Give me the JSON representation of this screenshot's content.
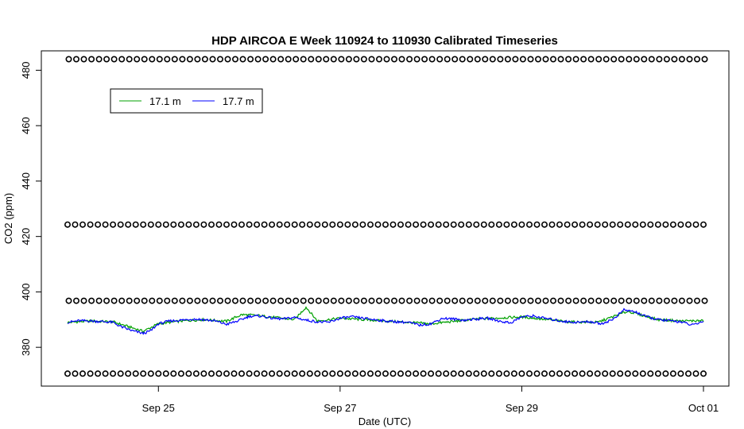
{
  "chart_data": {
    "type": "line",
    "title": "HDP AIRCOA E  Week 110924 to 110930  Calibrated Timeseries",
    "xlabel": "Date (UTC)",
    "ylabel": "CO2 (ppm)",
    "xlim": [
      "2011-09-24T00:00",
      "2011-10-01T00:00"
    ],
    "ylim": [
      366,
      487
    ],
    "x_ticks": [
      {
        "x": "2011-09-25T00:00",
        "label": "Sep 25"
      },
      {
        "x": "2011-09-27T00:00",
        "label": "Sep 27"
      },
      {
        "x": "2011-09-29T00:00",
        "label": "Sep 29"
      },
      {
        "x": "2011-10-01T00:00",
        "label": "Oct 01"
      }
    ],
    "y_ticks": [
      380,
      400,
      420,
      440,
      460,
      480
    ],
    "grid": false,
    "legend": {
      "position": "top-left",
      "horizontal": true
    },
    "series": [
      {
        "name": "17.1 m",
        "color": "#00a000",
        "points": [
          [
            "2011-09-24T00:00",
            389.0
          ],
          [
            "2011-09-24T06:00",
            389.5
          ],
          [
            "2011-09-24T12:00",
            389.2
          ],
          [
            "2011-09-24T16:00",
            387.5
          ],
          [
            "2011-09-24T20:00",
            385.8
          ],
          [
            "2011-09-25T00:00",
            388.5
          ],
          [
            "2011-09-25T06:00",
            389.5
          ],
          [
            "2011-09-25T12:00",
            390.0
          ],
          [
            "2011-09-25T18:00",
            389.4
          ],
          [
            "2011-09-25T22:00",
            391.8
          ],
          [
            "2011-09-26T02:00",
            391.5
          ],
          [
            "2011-09-26T12:00",
            390.0
          ],
          [
            "2011-09-26T15:00",
            394.5
          ],
          [
            "2011-09-26T18:00",
            389.5
          ],
          [
            "2011-09-27T00:00",
            390.5
          ],
          [
            "2011-09-27T12:00",
            389.5
          ],
          [
            "2011-09-28T00:00",
            388.5
          ],
          [
            "2011-09-28T12:00",
            390.2
          ],
          [
            "2011-09-29T00:00",
            391.0
          ],
          [
            "2011-09-29T12:00",
            389.2
          ],
          [
            "2011-09-29T20:00",
            389.0
          ],
          [
            "2011-09-30T04:00",
            393.0
          ],
          [
            "2011-09-30T12:00",
            390.0
          ],
          [
            "2011-09-30T18:00",
            389.5
          ],
          [
            "2011-10-01T00:00",
            389.6
          ]
        ]
      },
      {
        "name": "17.7 m",
        "color": "#0000ff",
        "points": [
          [
            "2011-09-24T00:00",
            389.0
          ],
          [
            "2011-09-24T03:00",
            389.6
          ],
          [
            "2011-09-24T06:00",
            389.5
          ],
          [
            "2011-09-24T09:00",
            389.3
          ],
          [
            "2011-09-24T12:00",
            389.0
          ],
          [
            "2011-09-24T14:00",
            387.5
          ],
          [
            "2011-09-24T17:00",
            386.0
          ],
          [
            "2011-09-24T20:00",
            385.0
          ],
          [
            "2011-09-24T22:00",
            386.0
          ],
          [
            "2011-09-25T00:00",
            388.5
          ],
          [
            "2011-09-25T03:00",
            389.5
          ],
          [
            "2011-09-25T06:00",
            389.8
          ],
          [
            "2011-09-25T09:00",
            390.2
          ],
          [
            "2011-09-25T12:00",
            390.0
          ],
          [
            "2011-09-25T15:00",
            389.5
          ],
          [
            "2011-09-25T18:00",
            388.3
          ],
          [
            "2011-09-25T21:00",
            389.5
          ],
          [
            "2011-09-26T00:00",
            391.2
          ],
          [
            "2011-09-26T03:00",
            391.3
          ],
          [
            "2011-09-26T06:00",
            390.5
          ],
          [
            "2011-09-26T09:00",
            390.2
          ],
          [
            "2011-09-26T12:00",
            390.8
          ],
          [
            "2011-09-26T15:00",
            389.8
          ],
          [
            "2011-09-26T18:00",
            389.2
          ],
          [
            "2011-09-26T21:00",
            389.0
          ],
          [
            "2011-09-27T00:00",
            390.5
          ],
          [
            "2011-09-27T03:00",
            391.0
          ],
          [
            "2011-09-27T06:00",
            390.5
          ],
          [
            "2011-09-27T09:00",
            390.0
          ],
          [
            "2011-09-27T12:00",
            389.5
          ],
          [
            "2011-09-27T15:00",
            389.2
          ],
          [
            "2011-09-27T18:00",
            389.0
          ],
          [
            "2011-09-27T21:00",
            388.0
          ],
          [
            "2011-09-28T00:00",
            388.5
          ],
          [
            "2011-09-28T03:00",
            390.5
          ],
          [
            "2011-09-28T06:00",
            390.2
          ],
          [
            "2011-09-28T09:00",
            389.8
          ],
          [
            "2011-09-28T12:00",
            390.2
          ],
          [
            "2011-09-28T15:00",
            390.5
          ],
          [
            "2011-09-28T18:00",
            389.5
          ],
          [
            "2011-09-28T21:00",
            388.8
          ],
          [
            "2011-09-29T00:00",
            391.0
          ],
          [
            "2011-09-29T03:00",
            391.3
          ],
          [
            "2011-09-29T06:00",
            390.5
          ],
          [
            "2011-09-29T09:00",
            389.8
          ],
          [
            "2011-09-29T12:00",
            389.2
          ],
          [
            "2011-09-29T15:00",
            389.0
          ],
          [
            "2011-09-29T18:00",
            389.3
          ],
          [
            "2011-09-29T21:00",
            388.5
          ],
          [
            "2011-09-30T00:00",
            390.0
          ],
          [
            "2011-09-30T03:00",
            393.5
          ],
          [
            "2011-09-30T06:00",
            392.8
          ],
          [
            "2011-09-30T09:00",
            391.0
          ],
          [
            "2011-09-30T12:00",
            390.0
          ],
          [
            "2011-09-30T15:00",
            389.6
          ],
          [
            "2011-09-30T18:00",
            389.2
          ],
          [
            "2011-09-30T21:00",
            388.0
          ],
          [
            "2011-10-01T00:00",
            389.3
          ]
        ]
      },
      {
        "name": "",
        "color": "#000000",
        "marker": "circle",
        "levels": [
          370.5,
          396.8,
          424.3,
          484.0
        ]
      }
    ]
  }
}
